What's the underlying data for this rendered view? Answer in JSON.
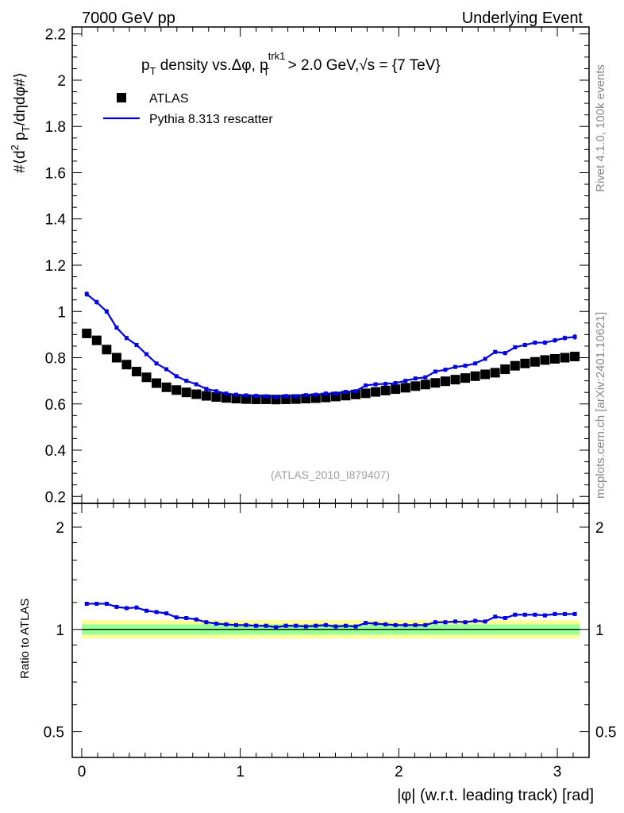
{
  "header": {
    "left": "7000 GeV pp",
    "right": "Underlying Event"
  },
  "side_text": {
    "rivet": "Rivet 4.1.0,  100k events",
    "mcplots": "mcplots.cern.ch [arXiv:2401.10621]"
  },
  "colors": {
    "mc": "#0000e6",
    "data": "#000000",
    "band_outer": "#ffff99",
    "band_inner": "#99ff99",
    "ref_line": "#007a00"
  },
  "chart_data": [
    {
      "type": "scatter",
      "panel": "main",
      "title": "p_T density vs.Δφ, p_T^trk1 > 2.0 GeV,√s = {7 TeV}",
      "title_parts": {
        "p": "p",
        "sub_T": "T",
        "mid": " density vs.Δφ, p",
        "sup_trk1": "trk1",
        "sub_T2": "T",
        "tail": " > 2.0 GeV,√s = {7 TeV}"
      },
      "ylabel": "#⟨d² p_T/dηdφ#⟩",
      "ylabel_parts": {
        "a": "#⟨d",
        "sup2": "2",
        "b": " p",
        "subT": "T",
        "c": "/dηdφ#⟩"
      },
      "ylim": [
        0.17,
        2.23
      ],
      "yticks": [
        0.2,
        0.4,
        0.6,
        0.8,
        1,
        1.2,
        1.4,
        1.6,
        1.8,
        2,
        2.2
      ],
      "ytick_labels": [
        "0.2",
        "0.4",
        "0.6",
        "0.8",
        "1",
        "1.2",
        "1.4",
        "1.6",
        "1.8",
        "2",
        "2.2"
      ],
      "watermark": "(ATLAS_2010_I879407)",
      "legend": {
        "position": "top-left",
        "entries": [
          "ATLAS",
          "Pythia 8.313 rescatter"
        ]
      },
      "series": [
        {
          "name": "ATLAS",
          "style": "square-markers",
          "x": [
            0.0314,
            0.0942,
            0.157,
            0.2199,
            0.2827,
            0.3456,
            0.4084,
            0.4712,
            0.5341,
            0.5969,
            0.6597,
            0.7226,
            0.7854,
            0.8482,
            0.9111,
            0.9739,
            1.0367,
            1.0996,
            1.1624,
            1.2252,
            1.2881,
            1.3509,
            1.4137,
            1.4765,
            1.5394,
            1.6022,
            1.665,
            1.7279,
            1.7907,
            1.8535,
            1.9164,
            1.9792,
            2.042,
            2.1049,
            2.1677,
            2.2305,
            2.2934,
            2.3562,
            2.419,
            2.4819,
            2.5447,
            2.6075,
            2.6704,
            2.7332,
            2.796,
            2.8588,
            2.9217,
            2.9845,
            3.0473,
            3.1102
          ],
          "values": [
            0.905,
            0.875,
            0.835,
            0.8,
            0.77,
            0.74,
            0.715,
            0.69,
            0.672,
            0.66,
            0.65,
            0.642,
            0.635,
            0.63,
            0.626,
            0.623,
            0.621,
            0.62,
            0.62,
            0.619,
            0.62,
            0.621,
            0.623,
            0.625,
            0.628,
            0.632,
            0.636,
            0.641,
            0.646,
            0.652,
            0.658,
            0.664,
            0.67,
            0.677,
            0.684,
            0.691,
            0.698,
            0.705,
            0.712,
            0.72,
            0.728,
            0.735,
            0.75,
            0.765,
            0.775,
            0.782,
            0.79,
            0.795,
            0.8,
            0.805
          ]
        },
        {
          "name": "Pythia 8.313 rescatter",
          "style": "line-with-errors",
          "x": [
            0.0314,
            0.0942,
            0.157,
            0.2199,
            0.2827,
            0.3456,
            0.4084,
            0.4712,
            0.5341,
            0.5969,
            0.6597,
            0.7226,
            0.7854,
            0.8482,
            0.9111,
            0.9739,
            1.0367,
            1.0996,
            1.1624,
            1.2252,
            1.2881,
            1.3509,
            1.4137,
            1.4765,
            1.5394,
            1.6022,
            1.665,
            1.7279,
            1.7907,
            1.8535,
            1.9164,
            1.9792,
            2.042,
            2.1049,
            2.1677,
            2.2305,
            2.2934,
            2.3562,
            2.419,
            2.4819,
            2.5447,
            2.6075,
            2.6704,
            2.7332,
            2.796,
            2.8588,
            2.9217,
            2.9845,
            3.0473,
            3.1102
          ],
          "values": [
            1.075,
            1.04,
            1.0,
            0.93,
            0.885,
            0.855,
            0.815,
            0.775,
            0.75,
            0.72,
            0.7,
            0.685,
            0.665,
            0.655,
            0.645,
            0.64,
            0.637,
            0.635,
            0.633,
            0.63,
            0.634,
            0.633,
            0.638,
            0.64,
            0.645,
            0.645,
            0.652,
            0.655,
            0.68,
            0.685,
            0.687,
            0.69,
            0.7,
            0.71,
            0.715,
            0.74,
            0.748,
            0.76,
            0.765,
            0.775,
            0.795,
            0.825,
            0.82,
            0.845,
            0.855,
            0.865,
            0.865,
            0.875,
            0.885,
            0.89
          ],
          "errors": [
            0.012,
            0.01,
            0.01,
            0.009,
            0.009,
            0.009,
            0.008,
            0.008,
            0.008,
            0.008,
            0.008,
            0.008,
            0.007,
            0.007,
            0.007,
            0.007,
            0.007,
            0.007,
            0.007,
            0.007,
            0.007,
            0.007,
            0.007,
            0.007,
            0.007,
            0.007,
            0.007,
            0.007,
            0.007,
            0.007,
            0.007,
            0.007,
            0.007,
            0.007,
            0.007,
            0.008,
            0.008,
            0.008,
            0.008,
            0.008,
            0.008,
            0.009,
            0.009,
            0.009,
            0.009,
            0.009,
            0.01,
            0.01,
            0.01,
            0.012
          ]
        }
      ]
    },
    {
      "type": "line",
      "panel": "ratio",
      "xlabel": "|φ| (w.r.t. leading track) [rad]",
      "ylabel": "Ratio to ATLAS",
      "xlim": [
        -0.06,
        3.2
      ],
      "xticks": [
        0,
        1,
        2,
        3
      ],
      "xtick_labels": [
        "0",
        "1",
        "2",
        "3"
      ],
      "ylim": [
        0.42,
        2.35
      ],
      "yscale": "log",
      "yticks_labeled": [
        0.5,
        1,
        2
      ],
      "ytick_labels": [
        "0.5",
        "1",
        "2"
      ],
      "reference_band": {
        "outer": [
          0.94,
          1.065
        ],
        "inner": [
          0.965,
          1.035
        ]
      },
      "series": [
        {
          "name": "Pythia 8.313 rescatter / ATLAS",
          "x": [
            0.0314,
            0.0942,
            0.157,
            0.2199,
            0.2827,
            0.3456,
            0.4084,
            0.4712,
            0.5341,
            0.5969,
            0.6597,
            0.7226,
            0.7854,
            0.8482,
            0.9111,
            0.9739,
            1.0367,
            1.0996,
            1.1624,
            1.2252,
            1.2881,
            1.3509,
            1.4137,
            1.4765,
            1.5394,
            1.6022,
            1.665,
            1.7279,
            1.7907,
            1.8535,
            1.9164,
            1.9792,
            2.042,
            2.1049,
            2.1677,
            2.2305,
            2.2934,
            2.3562,
            2.419,
            2.4819,
            2.5447,
            2.6075,
            2.6704,
            2.7332,
            2.796,
            2.8588,
            2.9217,
            2.9845,
            3.0473,
            3.1102
          ],
          "values": [
            1.19,
            1.19,
            1.19,
            1.165,
            1.155,
            1.16,
            1.135,
            1.125,
            1.115,
            1.085,
            1.08,
            1.07,
            1.05,
            1.04,
            1.035,
            1.03,
            1.03,
            1.025,
            1.025,
            1.015,
            1.025,
            1.025,
            1.02,
            1.025,
            1.03,
            1.02,
            1.025,
            1.02,
            1.045,
            1.04,
            1.035,
            1.03,
            1.03,
            1.03,
            1.03,
            1.05,
            1.05,
            1.055,
            1.05,
            1.06,
            1.055,
            1.09,
            1.08,
            1.105,
            1.105,
            1.105,
            1.1,
            1.11,
            1.11,
            1.11
          ],
          "errors": [
            0.013,
            0.012,
            0.012,
            0.011,
            0.011,
            0.011,
            0.01,
            0.01,
            0.01,
            0.01,
            0.01,
            0.01,
            0.01,
            0.01,
            0.01,
            0.01,
            0.01,
            0.01,
            0.01,
            0.01,
            0.01,
            0.01,
            0.01,
            0.01,
            0.01,
            0.01,
            0.01,
            0.01,
            0.01,
            0.01,
            0.01,
            0.01,
            0.01,
            0.01,
            0.01,
            0.01,
            0.01,
            0.01,
            0.01,
            0.01,
            0.01,
            0.011,
            0.011,
            0.011,
            0.011,
            0.011,
            0.012,
            0.012,
            0.012,
            0.013
          ]
        }
      ]
    }
  ]
}
